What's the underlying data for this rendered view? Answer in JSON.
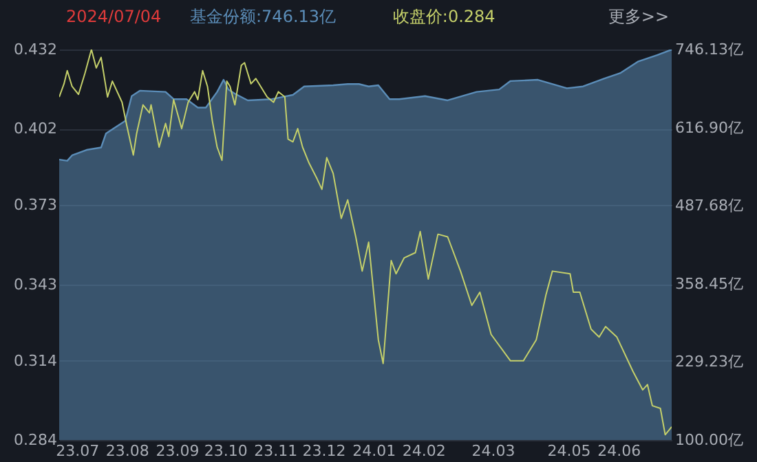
{
  "chart_data": {
    "type": "line",
    "title": "2024/07/04",
    "annotations": [
      "更多>>"
    ],
    "xlim": [
      "2023-06-20",
      "2024-07-04"
    ],
    "xticks": [
      {
        "value": "2023-07-01",
        "label": "23.07"
      },
      {
        "value": "2023-08-01",
        "label": "23.08"
      },
      {
        "value": "2023-09-01",
        "label": "23.09"
      },
      {
        "value": "2023-10-01",
        "label": "23.10"
      },
      {
        "value": "2023-11-01",
        "label": "23.11"
      },
      {
        "value": "2023-12-01",
        "label": "23.12"
      },
      {
        "value": "2024-01-01",
        "label": "24.01"
      },
      {
        "value": "2024-02-01",
        "label": "24.02"
      },
      {
        "value": "2024-03-15",
        "label": "24.03"
      },
      {
        "value": "2024-05-01",
        "label": "24.05"
      },
      {
        "value": "2024-06-01",
        "label": "24.06"
      }
    ],
    "ylim": [
      0.284,
      0.432
    ],
    "yticks": [
      0.284,
      0.314,
      0.343,
      0.373,
      0.402,
      0.432
    ],
    "y2lim": [
      100,
      746.13
    ],
    "y2ticks": [
      {
        "value": 100,
        "label": "100.00亿"
      },
      {
        "value": 229.23,
        "label": "229.23亿"
      },
      {
        "value": 358.45,
        "label": "358.45亿"
      },
      {
        "value": 487.68,
        "label": "487.68亿"
      },
      {
        "value": 616.9,
        "label": "616.90亿"
      },
      {
        "value": 746.13,
        "label": "746.13亿"
      }
    ],
    "grid": "y",
    "legend": false,
    "series": [
      {
        "name": "基金份额:746.13亿",
        "type": "area",
        "axis": "y2",
        "color": "#5b8db8",
        "x": [
          "2023-06-20",
          "2023-06-25",
          "2023-06-28",
          "2023-07-07",
          "2023-07-16",
          "2023-07-19",
          "2023-07-24",
          "2023-07-31",
          "2023-08-04",
          "2023-08-09",
          "2023-08-25",
          "2023-08-30",
          "2023-09-07",
          "2023-09-14",
          "2023-09-19",
          "2023-09-26",
          "2023-09-30",
          "2023-10-03",
          "2023-10-07",
          "2023-10-15",
          "2023-10-30",
          "2023-11-12",
          "2023-11-19",
          "2023-12-07",
          "2023-12-16",
          "2023-12-23",
          "2023-12-29",
          "2024-01-04",
          "2024-01-11",
          "2024-01-17",
          "2024-02-02",
          "2024-02-16",
          "2024-03-05",
          "2024-03-19",
          "2024-03-26",
          "2024-04-12",
          "2024-04-30",
          "2024-05-10",
          "2024-05-23",
          "2024-06-02",
          "2024-06-13",
          "2024-06-25",
          "2024-07-04"
        ],
        "values": [
          564,
          562,
          571,
          580,
          584,
          607,
          616,
          628,
          669,
          678,
          676,
          664,
          664,
          650,
          650,
          676,
          696,
          680,
          673,
          662,
          664,
          671,
          685,
          687,
          689,
          689,
          685,
          687,
          664,
          664,
          669,
          662,
          676,
          680,
          694,
          696,
          682,
          685,
          698,
          707,
          726,
          737,
          746
        ]
      },
      {
        "name": "收盘价:0.284",
        "color": "#c5d06a",
        "x": [
          "2023-06-20",
          "2023-06-23",
          "2023-06-25",
          "2023-06-28",
          "2023-07-02",
          "2023-07-06",
          "2023-07-10",
          "2023-07-13",
          "2023-07-16",
          "2023-07-20",
          "2023-07-23",
          "2023-07-29",
          "2023-08-01",
          "2023-08-05",
          "2023-08-07",
          "2023-08-11",
          "2023-08-15",
          "2023-08-16",
          "2023-08-21",
          "2023-08-25",
          "2023-08-27",
          "2023-08-30",
          "2023-09-04",
          "2023-09-08",
          "2023-09-12",
          "2023-09-14",
          "2023-09-17",
          "2023-09-20",
          "2023-09-23",
          "2023-09-26",
          "2023-09-29",
          "2023-10-02",
          "2023-10-04",
          "2023-10-07",
          "2023-10-11",
          "2023-10-13",
          "2023-10-17",
          "2023-10-20",
          "2023-10-23",
          "2023-10-27",
          "2023-10-31",
          "2023-11-03",
          "2023-11-07",
          "2023-11-09",
          "2023-11-12",
          "2023-11-15",
          "2023-11-18",
          "2023-11-22",
          "2023-11-27",
          "2023-11-30",
          "2023-12-03",
          "2023-12-07",
          "2023-12-12",
          "2023-12-16",
          "2023-12-21",
          "2023-12-25",
          "2023-12-29",
          "2024-01-04",
          "2024-01-07",
          "2024-01-12",
          "2024-01-15",
          "2024-01-20",
          "2024-01-27",
          "2024-01-30",
          "2024-02-04",
          "2024-02-10",
          "2024-02-16",
          "2024-02-24",
          "2024-03-02",
          "2024-03-07",
          "2024-03-14",
          "2024-03-26",
          "2024-04-03",
          "2024-04-11",
          "2024-04-17",
          "2024-04-21",
          "2024-05-02",
          "2024-05-04",
          "2024-05-08",
          "2024-05-15",
          "2024-05-20",
          "2024-05-24",
          "2024-05-31",
          "2024-06-10",
          "2024-06-16",
          "2024-06-19",
          "2024-06-22",
          "2024-06-27",
          "2024-06-30",
          "2024-07-04"
        ],
        "values": [
          0.414,
          0.419,
          0.424,
          0.418,
          0.415,
          0.423,
          0.432,
          0.425,
          0.429,
          0.414,
          0.42,
          0.412,
          0.403,
          0.392,
          0.4,
          0.411,
          0.408,
          0.411,
          0.395,
          0.404,
          0.399,
          0.413,
          0.402,
          0.412,
          0.416,
          0.413,
          0.424,
          0.418,
          0.405,
          0.395,
          0.39,
          0.42,
          0.418,
          0.411,
          0.426,
          0.427,
          0.419,
          0.421,
          0.418,
          0.414,
          0.412,
          0.416,
          0.414,
          0.398,
          0.397,
          0.402,
          0.395,
          0.389,
          0.383,
          0.379,
          0.391,
          0.385,
          0.368,
          0.375,
          0.361,
          0.348,
          0.359,
          0.322,
          0.313,
          0.352,
          0.347,
          0.353,
          0.355,
          0.363,
          0.345,
          0.362,
          0.361,
          0.348,
          0.335,
          0.34,
          0.324,
          0.314,
          0.314,
          0.322,
          0.339,
          0.348,
          0.347,
          0.34,
          0.34,
          0.326,
          0.323,
          0.327,
          0.323,
          0.31,
          0.303,
          0.305,
          0.297,
          0.296,
          0.286,
          0.289
        ]
      }
    ]
  }
}
